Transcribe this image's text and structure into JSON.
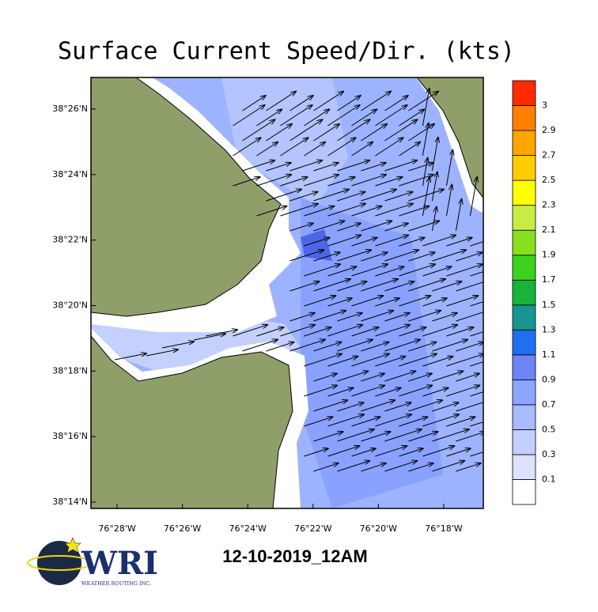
{
  "chart_data": {
    "type": "map",
    "title": "Surface Current Speed/Dir. (kts)",
    "xlim": [
      -76.48,
      -76.2798
    ],
    "ylim": [
      38.2301,
      38.4494
    ],
    "xticks": [
      {
        "value": -76.466667,
        "label": "76°28'W"
      },
      {
        "value": -76.433333,
        "label": "76°26'W"
      },
      {
        "value": -76.4,
        "label": "76°24'W"
      },
      {
        "value": -76.366667,
        "label": "76°22'W"
      },
      {
        "value": -76.333333,
        "label": "76°20'W"
      },
      {
        "value": -76.3,
        "label": "76°18'W"
      }
    ],
    "yticks": [
      {
        "value": 38.233333,
        "label": "38°14'N"
      },
      {
        "value": 38.266667,
        "label": "38°16'N"
      },
      {
        "value": 38.3,
        "label": "38°18'N"
      },
      {
        "value": 38.333333,
        "label": "38°20'N"
      },
      {
        "value": 38.366667,
        "label": "38°22'N"
      },
      {
        "value": 38.4,
        "label": "38°24'N"
      },
      {
        "value": 38.433333,
        "label": "38°26'N"
      }
    ],
    "colorbar": {
      "levels": [
        0.1,
        0.3,
        0.5,
        0.7,
        0.9,
        1.1,
        1.3,
        1.5,
        1.7,
        1.9,
        2.1,
        2.3,
        2.5,
        2.7,
        2.9,
        3
      ],
      "colors": [
        "#ffffff",
        "#dde3ff",
        "#c2cfff",
        "#a7bbff",
        "#8ca5ff",
        "#6e85f5",
        "#1f6ff0",
        "#17968f",
        "#1ab33a",
        "#3ed21e",
        "#86e01e",
        "#c7ec44",
        "#ffff00",
        "#ffcc00",
        "#ffa500",
        "#ff7f00",
        "#ff2a00"
      ]
    },
    "timestamp": "12-10-2019_12AM",
    "logo_text": "WRI",
    "logo_subtext": "WEATHER ROUTING INC."
  }
}
